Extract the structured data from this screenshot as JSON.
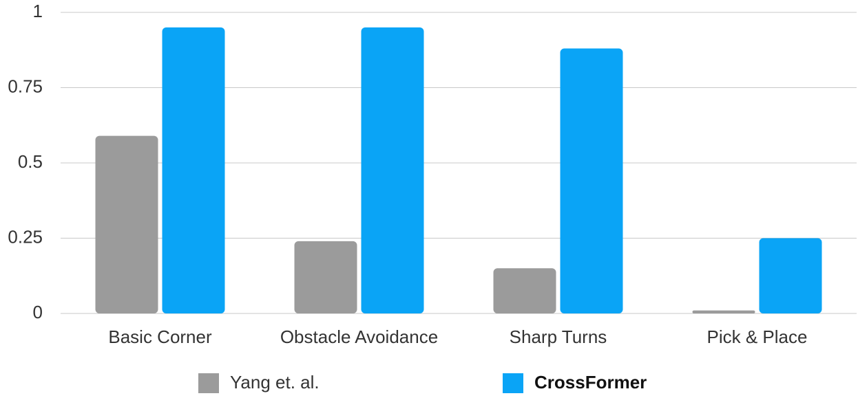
{
  "chart_data": {
    "type": "bar",
    "categories": [
      "Basic Corner",
      "Obstacle Avoidance",
      "Sharp Turns",
      "Pick & Place"
    ],
    "series": [
      {
        "name": "Yang et. al.",
        "color": "#9b9b9b",
        "values": [
          0.59,
          0.24,
          0.15,
          0.01
        ]
      },
      {
        "name": "CrossFormer",
        "color": "#0aa4f6",
        "values": [
          0.95,
          0.95,
          0.88,
          0.25
        ]
      }
    ],
    "ylim": [
      0,
      1
    ],
    "yticks": [
      0,
      0.25,
      0.5,
      0.75,
      1
    ],
    "grid": true
  }
}
